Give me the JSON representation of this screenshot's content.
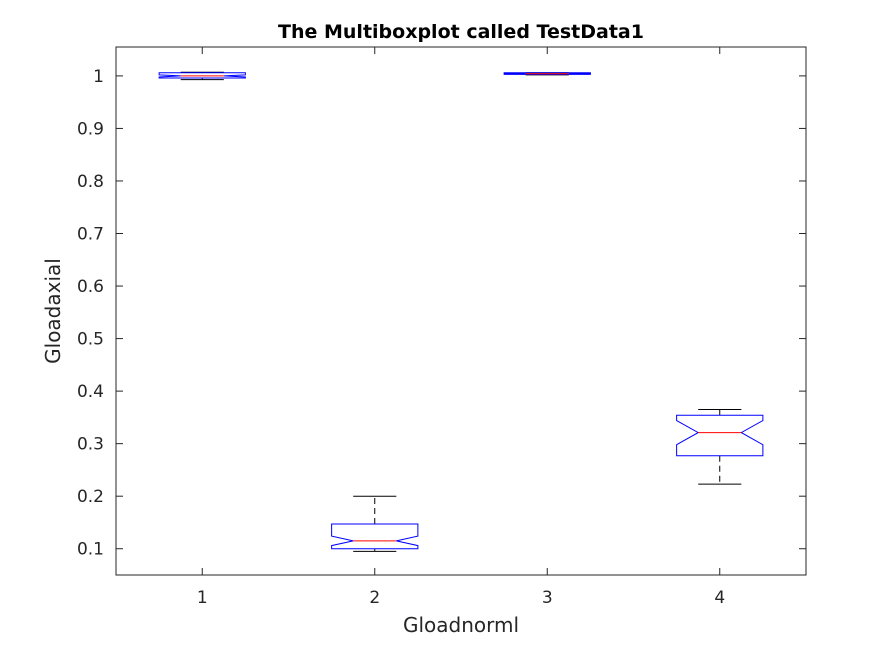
{
  "chart_data": {
    "type": "boxplot",
    "title": "The Multiboxplot called TestData1",
    "xlabel": "Gloadnorml",
    "ylabel": "Gloadaxial",
    "categories": [
      "1",
      "2",
      "3",
      "4"
    ],
    "xlim": [
      0.5,
      4.5
    ],
    "ylim": [
      0.05,
      1.055
    ],
    "yticks": [
      0.1,
      0.2,
      0.3,
      0.4,
      0.5,
      0.6,
      0.7,
      0.8,
      0.9,
      1
    ],
    "ytick_labels": [
      "0.1",
      "0.2",
      "0.3",
      "0.4",
      "0.5",
      "0.6",
      "0.7",
      "0.8",
      "0.9",
      "1"
    ],
    "notched": true,
    "grid": false,
    "colors": {
      "box": "#0000ff",
      "median": "#ff0000",
      "whisker": "#000000",
      "axis": "#262626"
    },
    "boxes": [
      {
        "category": "1",
        "whisker_low": 0.993,
        "q1": 0.996,
        "median": 1.0,
        "q3": 1.006,
        "whisker_high": 1.007,
        "notch_low": 0.998,
        "notch_high": 1.002
      },
      {
        "category": "2",
        "whisker_low": 0.095,
        "q1": 0.1,
        "median": 0.115,
        "q3": 0.147,
        "whisker_high": 0.2,
        "notch_low": 0.106,
        "notch_high": 0.124
      },
      {
        "category": "3",
        "whisker_low": 1.002,
        "q1": 1.003,
        "median": 1.004,
        "q3": 1.006,
        "whisker_high": 1.006,
        "notch_low": 1.0035,
        "notch_high": 1.0045
      },
      {
        "category": "4",
        "whisker_low": 0.223,
        "q1": 0.277,
        "median": 0.321,
        "q3": 0.354,
        "whisker_high": 0.365,
        "notch_low": 0.298,
        "notch_high": 0.344
      }
    ]
  }
}
